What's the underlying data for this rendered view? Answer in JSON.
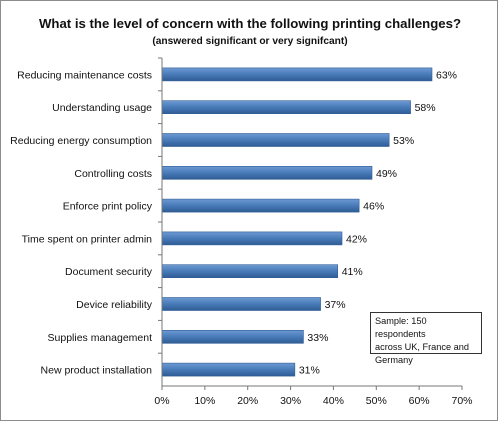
{
  "chart_data": {
    "type": "bar",
    "orientation": "horizontal",
    "title": "What is the level of concern with the following printing challenges?",
    "subtitle": "(answered significant or very signifcant)",
    "categories": [
      "Reducing maintenance costs",
      "Understanding usage",
      "Reducing energy consumption",
      "Controlling costs",
      "Enforce print policy",
      "Time spent on printer admin",
      "Document security",
      "Device reliability",
      "Supplies management",
      "New product installation"
    ],
    "values": [
      63,
      58,
      53,
      49,
      46,
      42,
      41,
      37,
      33,
      31
    ],
    "value_labels": [
      "63%",
      "58%",
      "53%",
      "49%",
      "46%",
      "42%",
      "41%",
      "37%",
      "33%",
      "31%"
    ],
    "xlim": [
      0,
      70
    ],
    "x_ticks": [
      "0%",
      "10%",
      "20%",
      "30%",
      "40%",
      "50%",
      "60%",
      "70%"
    ],
    "grid": false,
    "bar_color": "#4a7ebb",
    "annotation": {
      "line1": "Sample: 150 respondents",
      "line2": "across UK, France and",
      "line3": "Germany"
    }
  }
}
